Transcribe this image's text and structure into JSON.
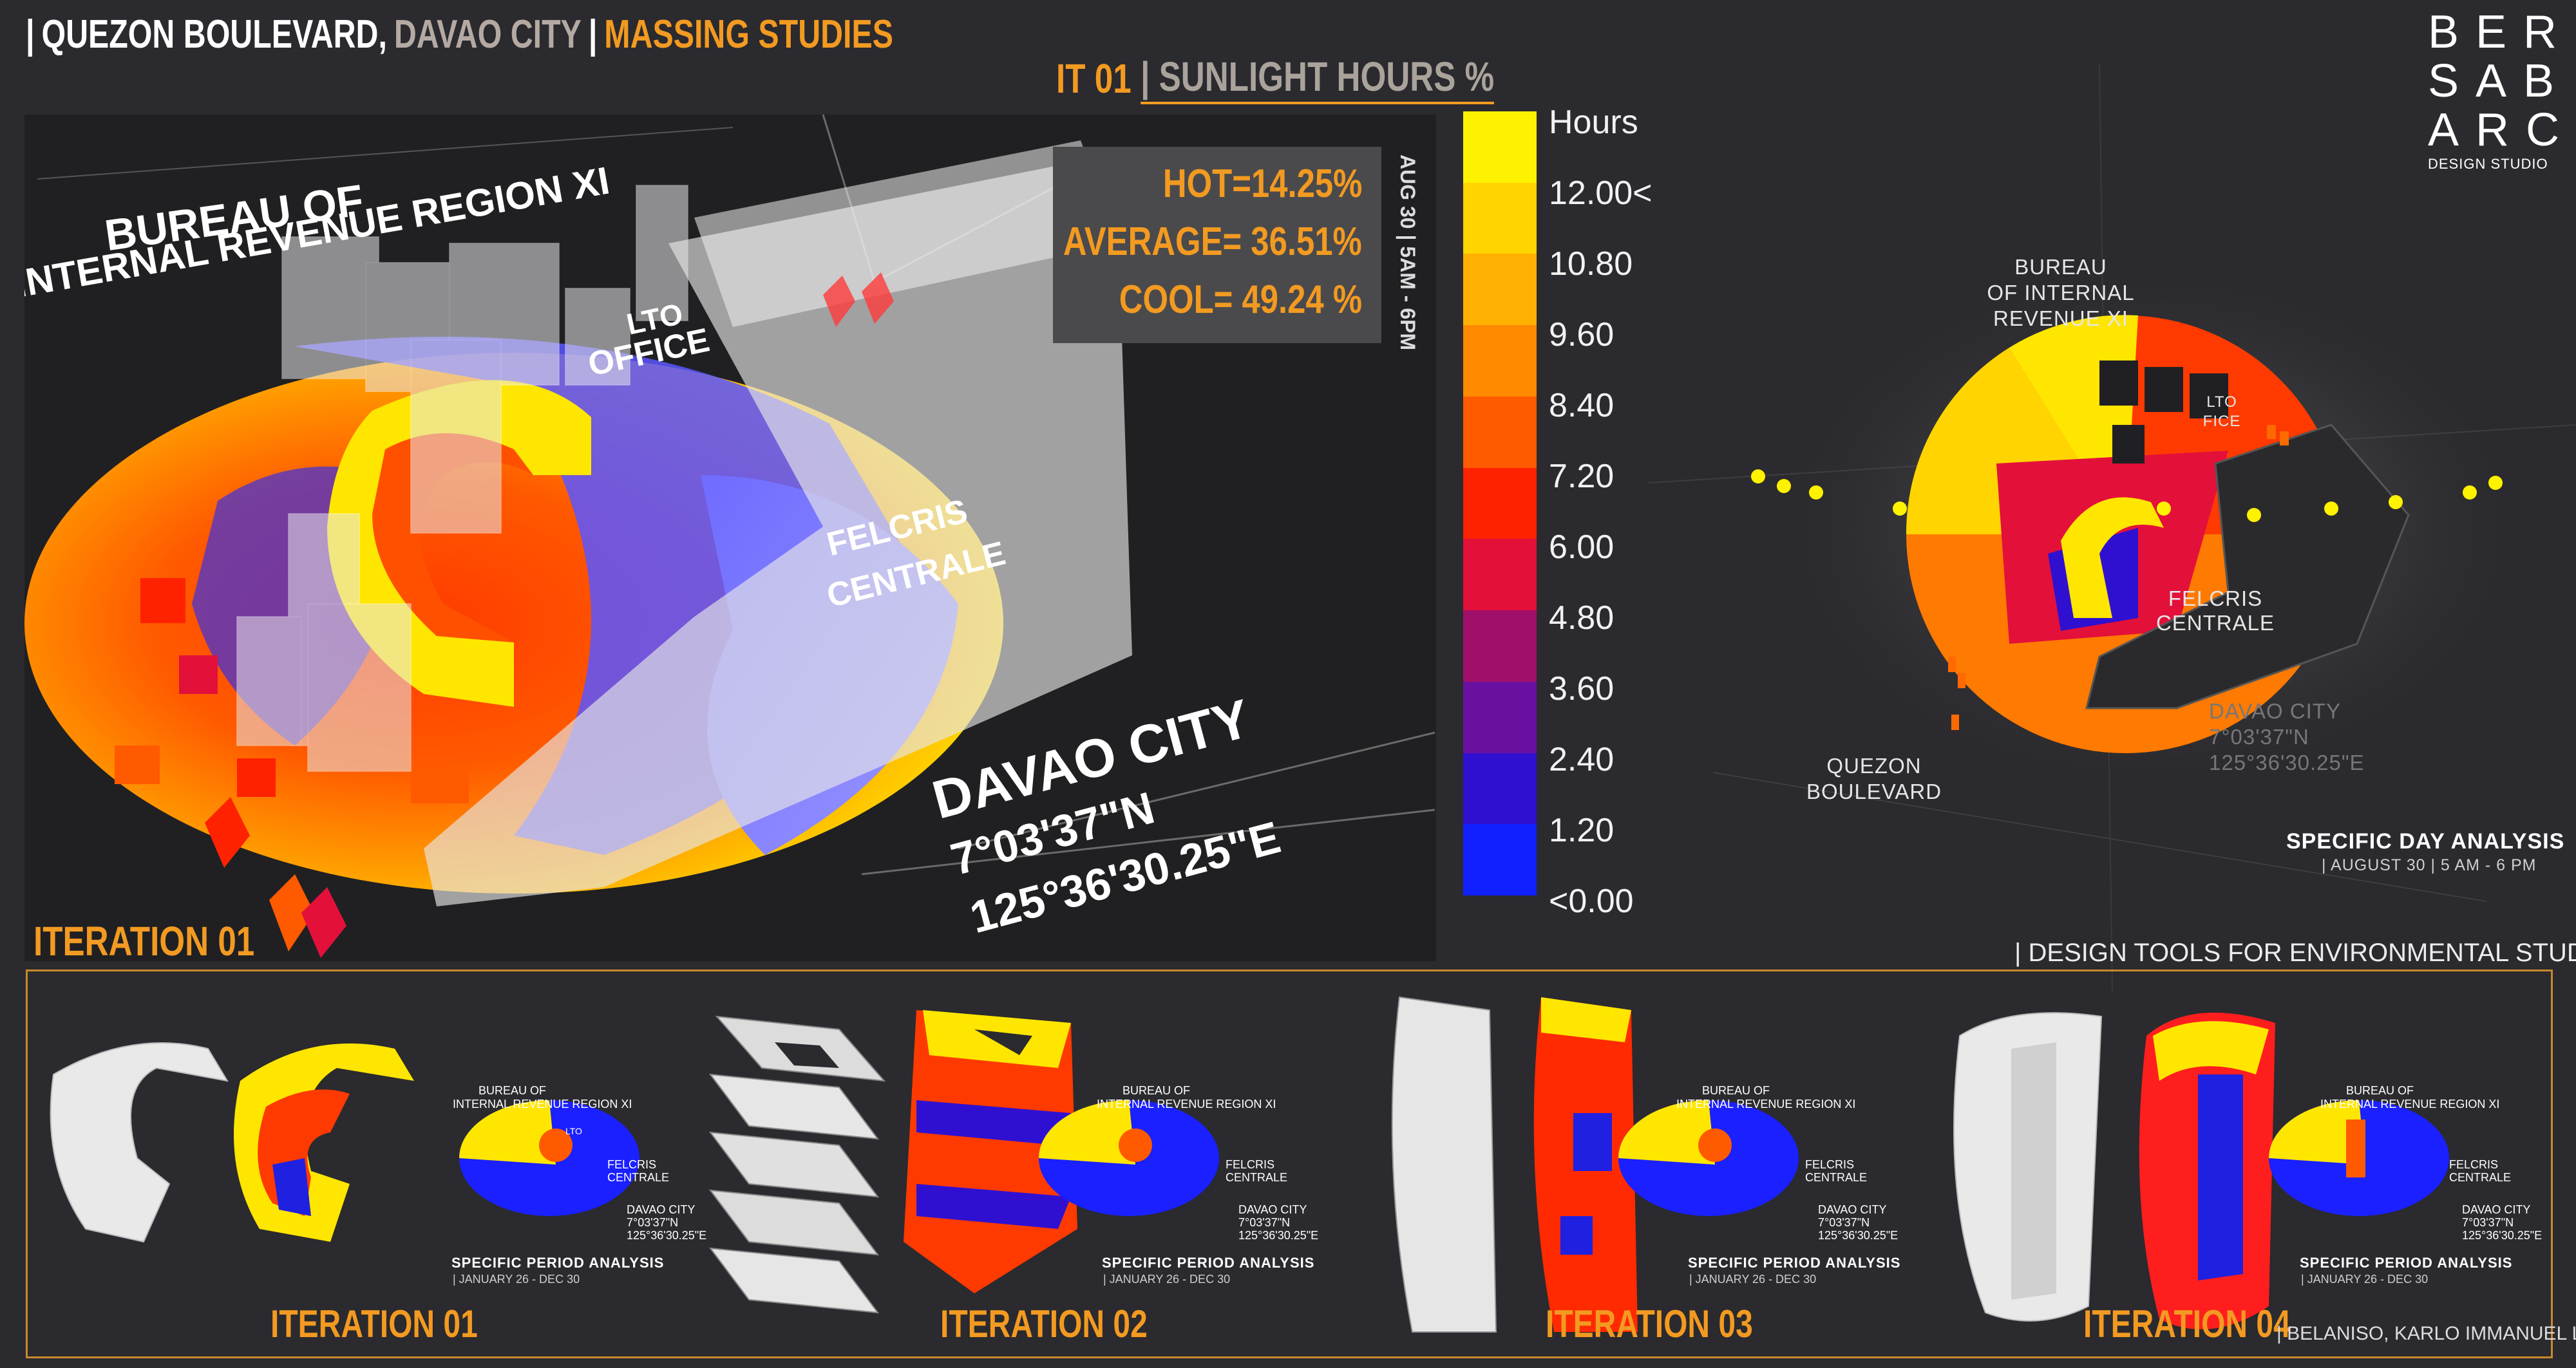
{
  "header": {
    "separator": "|",
    "title_part1": "QUEZON BOULEVARD,",
    "title_part2": "DAVAO CITY",
    "title_part3": "MASSING STUDIES",
    "subtitle_part1": "IT 01",
    "subtitle_part2": "| SUNLIGHT HOURS %"
  },
  "logo": {
    "rows": [
      "BER",
      "SAB",
      "ARC"
    ],
    "caption": "DESIGN STUDIO"
  },
  "stats": {
    "hot": "HOT=14.25%",
    "average": "AVERAGE= 36.51%",
    "cool": "COOL= 49.24 %"
  },
  "date_range_vertical": "AUG 30 | 5AM - 6PM",
  "map_labels": {
    "bir": "BUREAU OF",
    "bir2": "INTERNAL REVENUE REGION XI",
    "lto": "LTO",
    "lto2": "OFFICE",
    "felcris": "FELCRIS",
    "felcris2": "CENTRALE",
    "city": "DAVAO CITY",
    "lat": "7°03'37\"N",
    "lon": "125°36'30.25\"E"
  },
  "legend": {
    "title": "Hours",
    "labels": [
      "12.00<",
      "10.80",
      "9.60",
      "8.40",
      "7.20",
      "6.00",
      "4.80",
      "3.60",
      "2.40",
      "1.20",
      "<0.00"
    ],
    "colors": [
      "#fff200",
      "#ffd400",
      "#ffb000",
      "#ff8a00",
      "#ff5a00",
      "#ff2200",
      "#e3103a",
      "#a0106a",
      "#6a10a0",
      "#3010d0",
      "#1020ff"
    ]
  },
  "overview": {
    "bir": "BUREAU",
    "bir2": "OF INTERNAL REVENUE XI",
    "lto": "LTO",
    "lto2": "FICE",
    "felcris": "FELCRIS",
    "felcris2": "CENTRALE",
    "city": "DAVAO CITY",
    "lat": "7°03'37\"N",
    "lon": "125°36'30.25\"E",
    "quezon": "QUEZON",
    "quezon2": "BOULEVARD",
    "analysis_title": "SPECIFIC DAY ANALYSIS",
    "analysis_sub": "| AUGUST 30 | 5 AM - 6 PM"
  },
  "iteration_main": "ITERATION 01",
  "tools_label": "| DESIGN TOOLS FOR ENVIRONMENTAL STUDIES",
  "iterations": [
    {
      "title": "ITERATION 01",
      "caption": "SPECIFIC PERIOD ANALYSIS",
      "sub": "| JANUARY 26 - DEC 30"
    },
    {
      "title": "ITERATION 02",
      "caption": "SPECIFIC PERIOD ANALYSIS",
      "sub": "| JANUARY 26 - DEC 30"
    },
    {
      "title": "ITERATION 03",
      "caption": "SPECIFIC PERIOD ANALYSIS",
      "sub": "| JANUARY 26 - DEC 30"
    },
    {
      "title": "ITERATION 04",
      "caption": "SPECIFIC PERIOD ANALYSIS",
      "sub": "| JANUARY 26 - DEC 30"
    }
  ],
  "mini_labels": {
    "bir": "BUREAU OF",
    "bir2": "INTERNAL REVENUE REGION XI",
    "lto": "LTO",
    "felcris": "FELCRIS",
    "felcris2": "CENTRALE",
    "city": "DAVAO CITY",
    "lat": "7°03'37\"N",
    "lon": "125°36'30.25\"E"
  },
  "author": "| BELANISO, KARLO IMMANUEL L."
}
